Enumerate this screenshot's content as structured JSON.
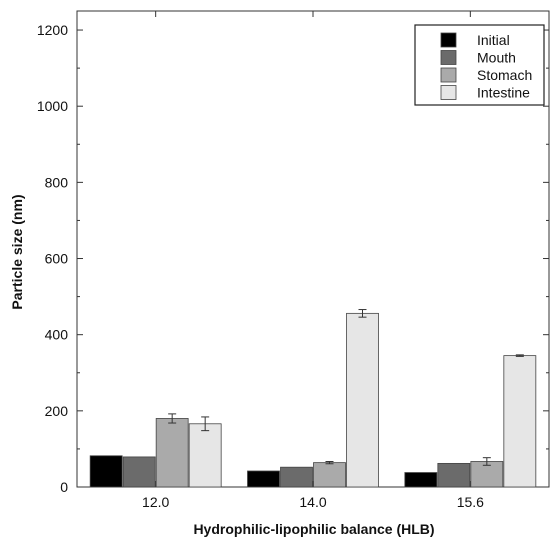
{
  "chart_data": {
    "type": "bar",
    "xlabel": "Hydrophilic-lipophilic balance (HLB)",
    "ylabel": "Particle size (nm)",
    "ylim": [
      0,
      1250
    ],
    "yticks": [
      0,
      200,
      400,
      600,
      800,
      1000,
      1200
    ],
    "categories": [
      "12.0",
      "14.0",
      "15.6"
    ],
    "legend_position": "top-right",
    "grid": false,
    "series": [
      {
        "name": "Initial",
        "color": "#000000",
        "values": [
          82,
          42,
          38
        ],
        "errors": [
          0,
          0,
          0
        ]
      },
      {
        "name": "Mouth",
        "color": "#6b6b6b",
        "values": [
          79,
          52,
          62
        ],
        "errors": [
          0,
          0,
          0
        ]
      },
      {
        "name": "Stomach",
        "color": "#aaaaaa",
        "values": [
          180,
          64,
          67
        ],
        "errors": [
          12,
          3,
          10
        ]
      },
      {
        "name": "Intestine",
        "color": "#e6e6e6",
        "values": [
          166,
          456,
          345
        ],
        "errors": [
          18,
          10,
          2
        ]
      }
    ]
  }
}
